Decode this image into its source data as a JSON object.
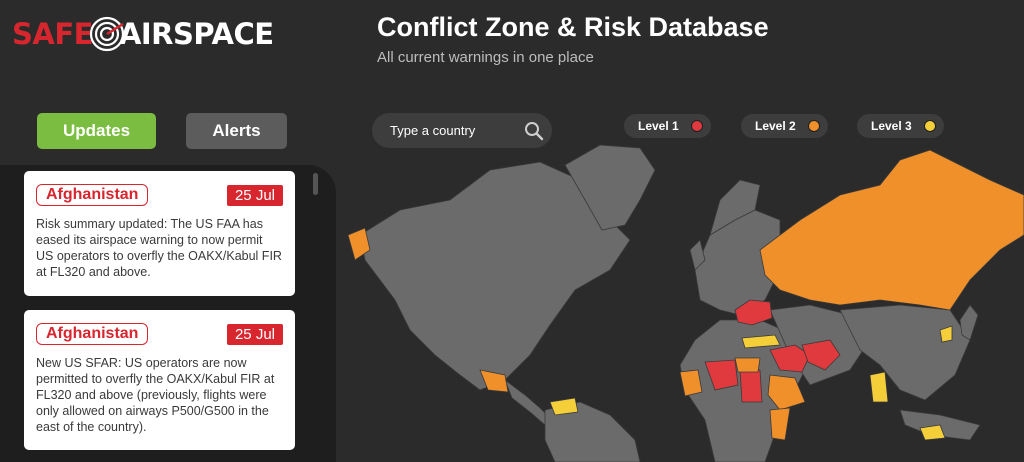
{
  "logo": {
    "part1": "SAFE",
    "part2": "AIRSPACE"
  },
  "header": {
    "title": "Conflict Zone & Risk Database",
    "subtitle": "All current warnings in one place"
  },
  "tabs": {
    "updates": "Updates",
    "alerts": "Alerts"
  },
  "search": {
    "placeholder": "Type a country"
  },
  "levels": [
    {
      "label": "Level 1",
      "color": "#e0393e"
    },
    {
      "label": "Level 2",
      "color": "#f0902a"
    },
    {
      "label": "Level 3",
      "color": "#f5cf3a"
    }
  ],
  "updates": [
    {
      "country": "Afghanistan",
      "date": "25 Jul",
      "text": "Risk summary updated: The US FAA has eased its airspace warning to now permit US operators to overfly the OAKX/Kabul FIR at FL320 and above."
    },
    {
      "country": "Afghanistan",
      "date": "25 Jul",
      "text": "New US SFAR: US operators are now permitted to overfly the OAKX/Kabul FIR at FL320 and above (previously, flights were only allowed on airways P500/G500 in the east of the country)."
    }
  ],
  "colors": {
    "background": "#2b2b2b",
    "land": "#6b6b6b",
    "accent_red": "#d8262f",
    "accent_green": "#7bbd40"
  }
}
